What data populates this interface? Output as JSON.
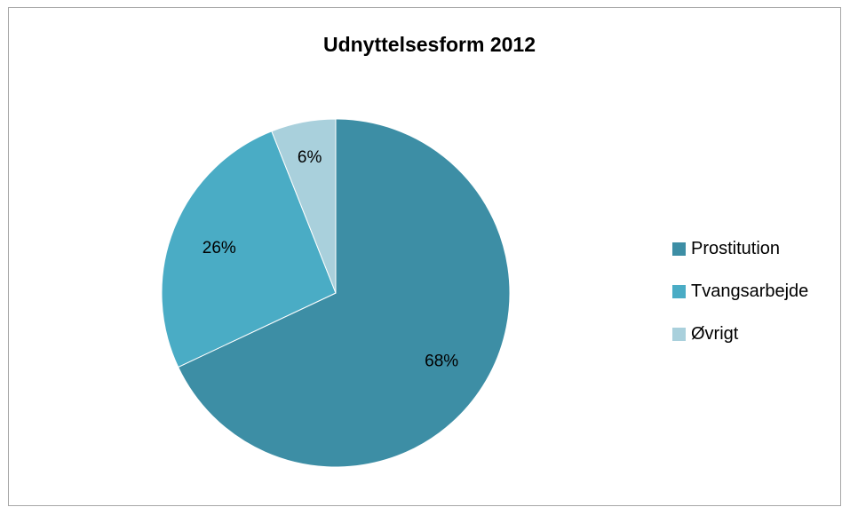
{
  "chart_data": {
    "type": "pie",
    "title": "Udnyttelsesform 2012",
    "slices": [
      {
        "label": "Prostitution",
        "value": 68,
        "display": "68%",
        "color": "#3d8ea5"
      },
      {
        "label": "Tvangsarbejde",
        "value": 26,
        "display": "26%",
        "color": "#4aacc5"
      },
      {
        "label": "Øvrigt",
        "value": 6,
        "display": "6%",
        "color": "#a9d0dc"
      }
    ],
    "legend_position": "right"
  }
}
